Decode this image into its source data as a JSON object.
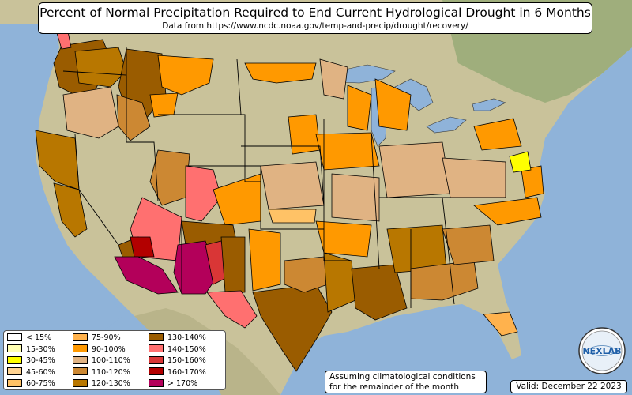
{
  "title": "Percent of Normal Precipitation Required to End Current Hydrological Drought in 6 Months",
  "subtitle": "Data from https://www.ncdc.noaa.gov/temp-and-precip/drought/recovery/",
  "legend": [
    {
      "label": "< 15%",
      "color": "#ffffff"
    },
    {
      "label": "15-30%",
      "color": "#ffffb3"
    },
    {
      "label": "30-45%",
      "color": "#ffff00"
    },
    {
      "label": "45-60%",
      "color": "#ffd391"
    },
    {
      "label": "60-75%",
      "color": "#ffc266"
    },
    {
      "label": "75-90%",
      "color": "#ffb24d"
    },
    {
      "label": "90-100%",
      "color": "#ff9900"
    },
    {
      "label": "100-110%",
      "color": "#e0b383"
    },
    {
      "label": "110-120%",
      "color": "#cc8833"
    },
    {
      "label": "120-130%",
      "color": "#b87700"
    },
    {
      "label": "130-140%",
      "color": "#9a5c00"
    },
    {
      "label": "140-150%",
      "color": "#ff7070"
    },
    {
      "label": "150-160%",
      "color": "#d93636"
    },
    {
      "label": "160-170%",
      "color": "#b30000"
    },
    {
      "label": "> 170%",
      "color": "#b3005a"
    }
  ],
  "note": {
    "line1": "Assuming climatological conditions",
    "line2": "for the remainder of the month"
  },
  "valid": "Valid: December 22 2023",
  "logo_text": "NEXLAB",
  "colors": {
    "ocean": "#8fb3d9",
    "land": "#c9c29a",
    "land_dark": "#9fae7c",
    "border": "#000000"
  }
}
